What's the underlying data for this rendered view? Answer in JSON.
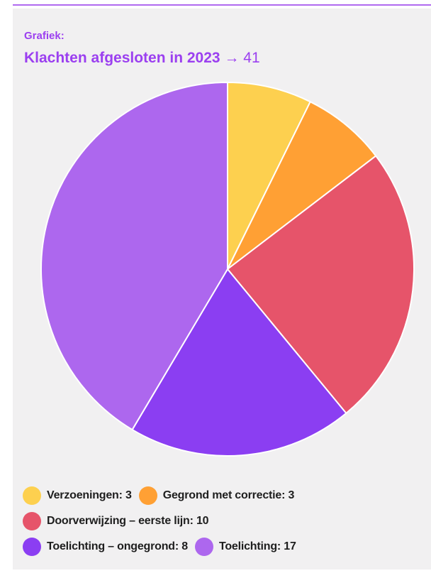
{
  "header": {
    "eyebrow": "Grafiek:",
    "title": "Klachten afgesloten in 2023",
    "arrow": "→",
    "total": "41"
  },
  "colors": {
    "verzoeningen": "#fdd04f",
    "gegrond": "#ffa034",
    "doorverwijzing": "#e6546a",
    "toelichting_ongegrond": "#8b3ef2",
    "toelichting": "#ad67ee",
    "accent": "#9b3ff0"
  },
  "legend": {
    "items": [
      {
        "label": "Verzoeningen: 3",
        "color": "#fdd04f"
      },
      {
        "label": "Gegrond met correctie: 3",
        "color": "#ffa034"
      },
      {
        "label": "Doorverwijzing – eerste lijn: 10",
        "color": "#e6546a"
      },
      {
        "label": "Toelichting – ongegrond: 8",
        "color": "#8b3ef2"
      },
      {
        "label": "Toelichting: 17",
        "color": "#ad67ee"
      }
    ]
  },
  "chart_data": {
    "type": "pie",
    "title": "Klachten afgesloten in 2023",
    "total": 41,
    "categories": [
      "Verzoeningen",
      "Gegrond met correctie",
      "Doorverwijzing – eerste lijn",
      "Toelichting – ongegrond",
      "Toelichting"
    ],
    "values": [
      3,
      3,
      10,
      8,
      17
    ],
    "colors": [
      "#fdd04f",
      "#ffa034",
      "#e6546a",
      "#8b3ef2",
      "#ad67ee"
    ],
    "start_angle": "12 o'clock",
    "direction": "clockwise",
    "legend_position": "bottom"
  }
}
